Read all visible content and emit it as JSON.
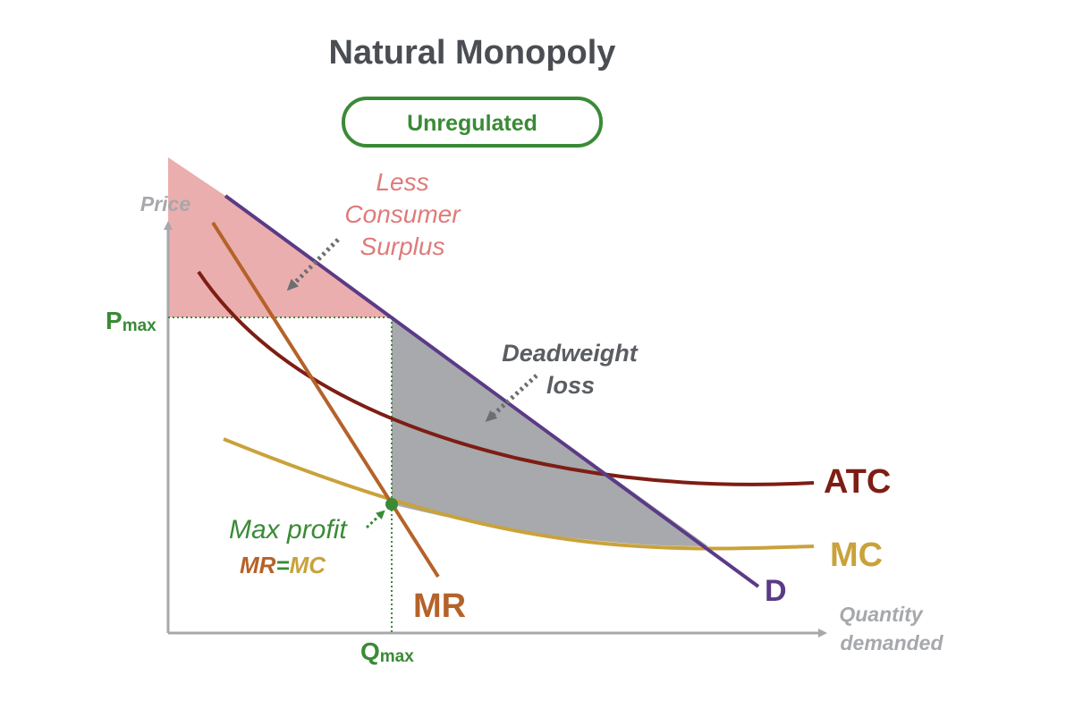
{
  "title": "Natural Monopoly",
  "badge": "Unregulated",
  "axes": {
    "y_label": "Price",
    "x_label_line1": "Quantity",
    "x_label_line2": "demanded"
  },
  "markers": {
    "p_main": "P",
    "p_sub": "max",
    "q_main": "Q",
    "q_sub": "max"
  },
  "annotations": {
    "consumer_surplus": [
      "Less",
      "Consumer",
      "Surplus"
    ],
    "deadweight": [
      "Deadweight",
      "loss"
    ],
    "max_profit": "Max profit",
    "mr_part": "MR",
    "eq_part": "=",
    "mc_part": "MC"
  },
  "curve_labels": {
    "atc": "ATC",
    "mc": "MC",
    "mr": "MR",
    "d": "D"
  },
  "colors": {
    "title": "#4a4d52",
    "badge": "#3a8a36",
    "axis": "#a6a8ab",
    "green": "#3a8a36",
    "consumer_fill": "#ebaeae",
    "consumer_text": "#e07a7a",
    "deadweight_fill": "#a7a9ac",
    "deadweight_text": "#5a5d62",
    "arrow": "#6c6e72",
    "atc": "#7e1d14",
    "mc": "#c9a23b",
    "mr": "#b5622a",
    "d": "#5b3a86"
  }
}
